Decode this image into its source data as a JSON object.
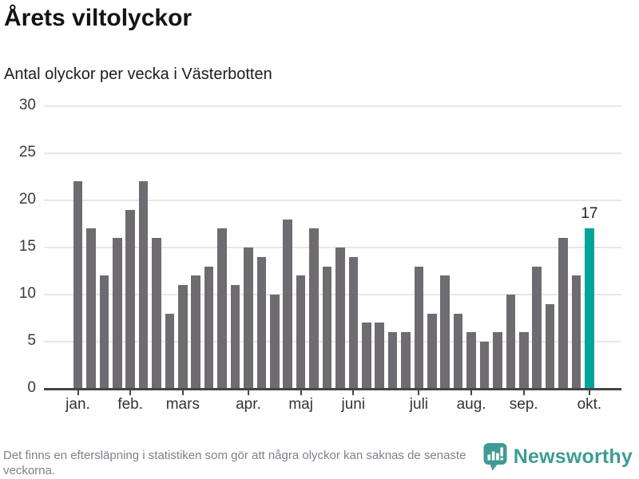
{
  "header": {
    "title": "Årets viltolyckor",
    "subtitle": "Antal olyckor per vecka i Västerbotten"
  },
  "chart_data": {
    "type": "bar",
    "title": "Årets viltolyckor",
    "subtitle": "Antal olyckor per vecka i Västerbotten",
    "x_unit": "vecka (week of year)",
    "weeks": [
      1,
      2,
      3,
      4,
      5,
      6,
      7,
      8,
      9,
      10,
      11,
      12,
      13,
      14,
      15,
      16,
      17,
      18,
      19,
      20,
      21,
      22,
      23,
      24,
      25,
      26,
      27,
      28,
      29,
      30,
      31,
      32,
      33,
      34,
      35,
      36,
      37,
      38,
      39,
      40
    ],
    "values": [
      22,
      17,
      12,
      16,
      19,
      22,
      16,
      8,
      11,
      12,
      13,
      17,
      11,
      15,
      14,
      10,
      18,
      12,
      17,
      13,
      15,
      14,
      7,
      7,
      6,
      6,
      13,
      8,
      12,
      8,
      6,
      5,
      6,
      10,
      6,
      13,
      9,
      16,
      12,
      17
    ],
    "highlight_index": 39,
    "annotation_label": "17",
    "yticks": [
      0,
      5,
      10,
      15,
      20,
      25,
      30
    ],
    "ylim": [
      0,
      30
    ],
    "grid": "horizontal",
    "legend": "none",
    "month_ticks": [
      {
        "label": "jan.",
        "week": 1
      },
      {
        "label": "feb.",
        "week": 5
      },
      {
        "label": "mars",
        "week": 9
      },
      {
        "label": "apr.",
        "week": 14
      },
      {
        "label": "maj",
        "week": 18
      },
      {
        "label": "juni",
        "week": 22
      },
      {
        "label": "juli",
        "week": 27
      },
      {
        "label": "aug.",
        "week": 31
      },
      {
        "label": "sep.",
        "week": 35
      },
      {
        "label": "okt.",
        "week": 40
      }
    ],
    "colors": {
      "bar": "#6e6c71",
      "highlight": "#00a49a",
      "grid": "#e7e7e7",
      "axis": "#454545",
      "label": "#333333"
    }
  },
  "footer": {
    "note": "Det finns en eftersläpning i statistiken som gör att några olyckor kan saknas de senaste veckorna."
  },
  "branding": {
    "name": "Newsworthy",
    "color": "#3e9c95",
    "icon": "newsworthy-speech-bubble-chart-icon"
  }
}
